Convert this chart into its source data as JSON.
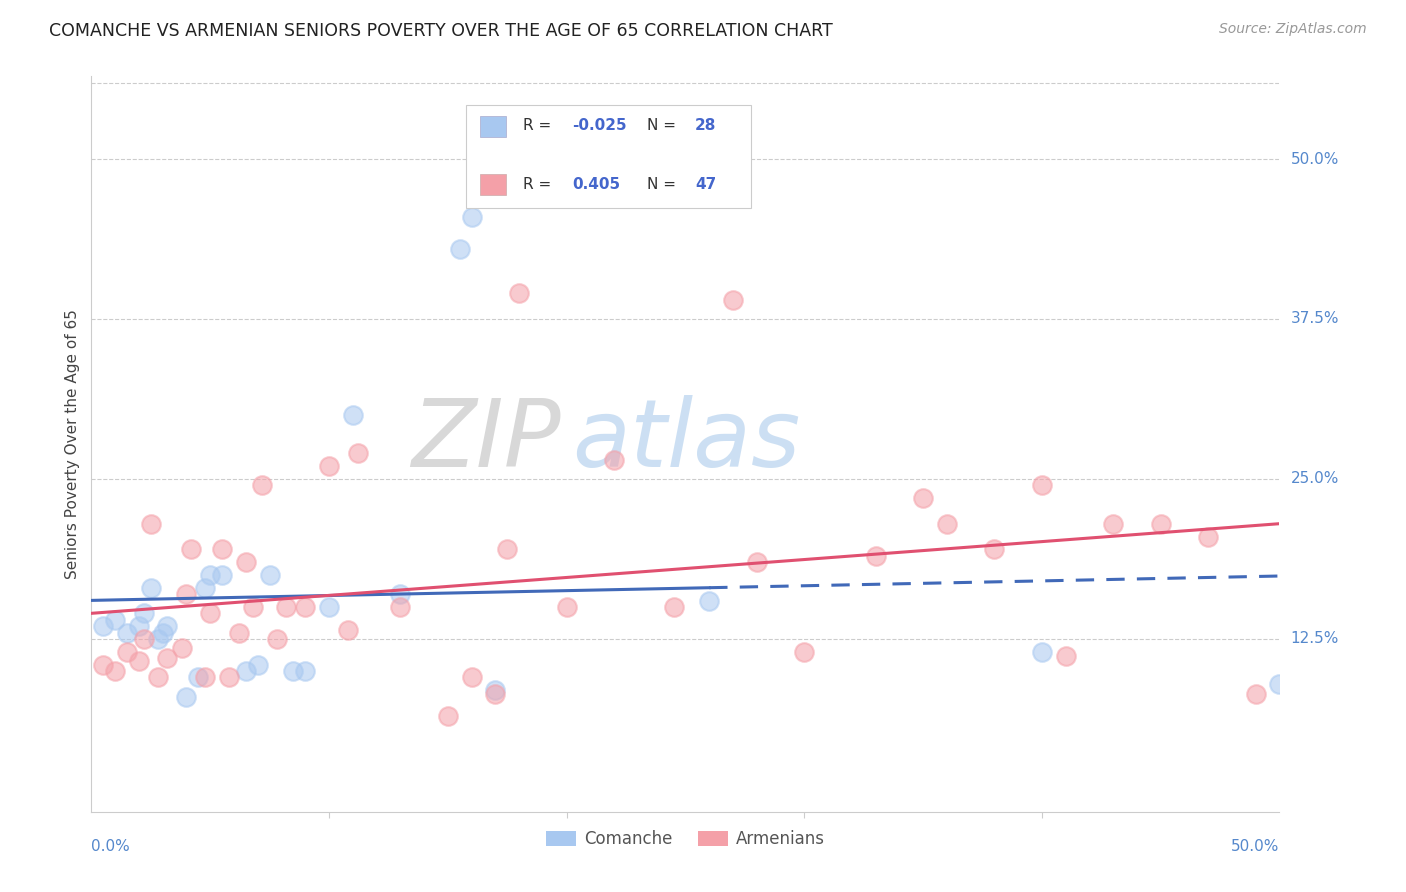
{
  "title": "COMANCHE VS ARMENIAN SENIORS POVERTY OVER THE AGE OF 65 CORRELATION CHART",
  "source": "Source: ZipAtlas.com",
  "ylabel": "Seniors Poverty Over the Age of 65",
  "y_ticks": [
    "12.5%",
    "25.0%",
    "37.5%",
    "50.0%"
  ],
  "y_tick_vals": [
    0.125,
    0.25,
    0.375,
    0.5
  ],
  "xlim": [
    0.0,
    0.5
  ],
  "ylim": [
    -0.01,
    0.565
  ],
  "comanche_color": "#A8C8F0",
  "armenian_color": "#F4A0A8",
  "comanche_line_color": "#4169B8",
  "armenian_line_color": "#E05070",
  "background_color": "#ffffff",
  "watermark_zip": "ZIP",
  "watermark_atlas": "atlas",
  "comanche_solid_xlim": [
    0.0,
    0.26
  ],
  "comanche_dashed_xlim": [
    0.26,
    0.5
  ],
  "comanche_x": [
    0.005,
    0.01,
    0.015,
    0.02,
    0.022,
    0.025,
    0.028,
    0.03,
    0.032,
    0.04,
    0.045,
    0.048,
    0.05,
    0.055,
    0.065,
    0.07,
    0.075,
    0.085,
    0.09,
    0.1,
    0.11,
    0.13,
    0.155,
    0.16,
    0.17,
    0.26,
    0.4,
    0.5
  ],
  "comanche_y": [
    0.135,
    0.14,
    0.13,
    0.135,
    0.145,
    0.165,
    0.125,
    0.13,
    0.135,
    0.08,
    0.095,
    0.165,
    0.175,
    0.175,
    0.1,
    0.105,
    0.175,
    0.1,
    0.1,
    0.15,
    0.3,
    0.16,
    0.43,
    0.455,
    0.085,
    0.155,
    0.115,
    0.09
  ],
  "armenian_x": [
    0.005,
    0.01,
    0.015,
    0.02,
    0.022,
    0.025,
    0.028,
    0.032,
    0.038,
    0.04,
    0.042,
    0.048,
    0.05,
    0.055,
    0.058,
    0.062,
    0.065,
    0.068,
    0.072,
    0.078,
    0.082,
    0.09,
    0.1,
    0.108,
    0.112,
    0.13,
    0.15,
    0.16,
    0.17,
    0.175,
    0.18,
    0.2,
    0.22,
    0.245,
    0.27,
    0.28,
    0.3,
    0.33,
    0.35,
    0.36,
    0.38,
    0.4,
    0.41,
    0.43,
    0.45,
    0.47,
    0.49
  ],
  "armenian_y": [
    0.105,
    0.1,
    0.115,
    0.108,
    0.125,
    0.215,
    0.095,
    0.11,
    0.118,
    0.16,
    0.195,
    0.095,
    0.145,
    0.195,
    0.095,
    0.13,
    0.185,
    0.15,
    0.245,
    0.125,
    0.15,
    0.15,
    0.26,
    0.132,
    0.27,
    0.15,
    0.065,
    0.095,
    0.082,
    0.195,
    0.395,
    0.15,
    0.265,
    0.15,
    0.39,
    0.185,
    0.115,
    0.19,
    0.235,
    0.215,
    0.195,
    0.245,
    0.112,
    0.215,
    0.215,
    0.205,
    0.082
  ]
}
